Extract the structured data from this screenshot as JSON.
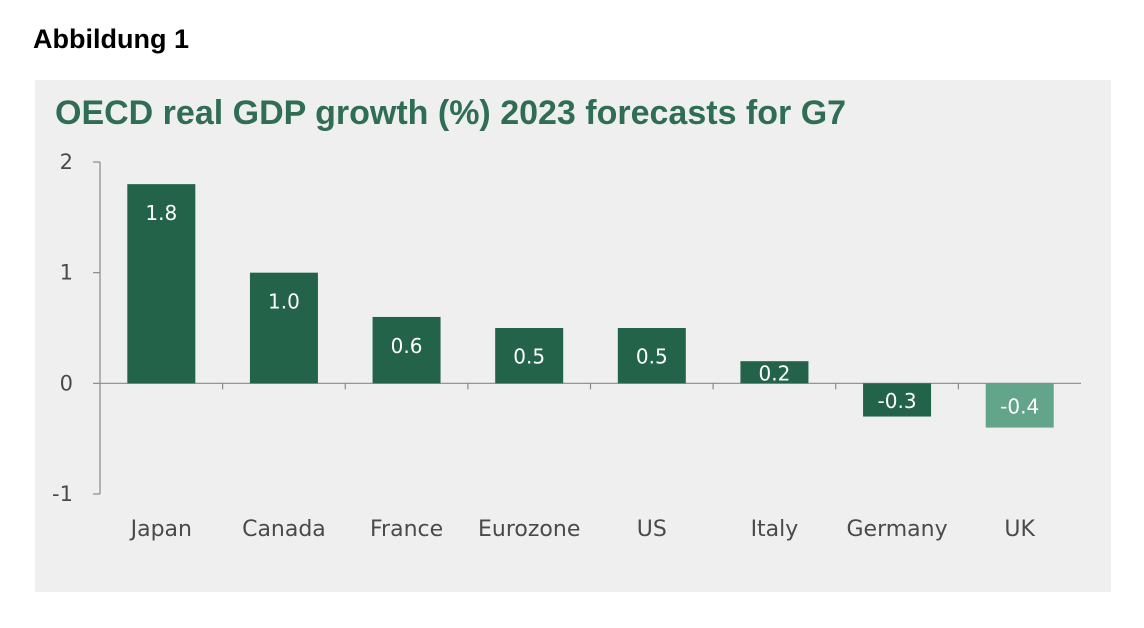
{
  "heading": "Abbildung 1",
  "colors": {
    "panel_bg": "#efefef",
    "title": "#2f6e54",
    "bar_positive": "#22634a",
    "bar_uk": "#63a58b",
    "axis": "#8a8a8a"
  },
  "chart_data": {
    "type": "bar",
    "title": "OECD real GDP growth (%) 2023 forecasts for G7",
    "xlabel": "",
    "ylabel": "",
    "categories": [
      "Japan",
      "Canada",
      "France",
      "Eurozone",
      "US",
      "Italy",
      "Germany",
      "UK"
    ],
    "values": [
      1.8,
      1.0,
      0.6,
      0.5,
      0.5,
      0.2,
      -0.3,
      -0.4
    ],
    "data_labels": [
      "1.8",
      "1.0",
      "0.6",
      "0.5",
      "0.5",
      "0.2",
      "-0.3",
      "-0.4"
    ],
    "ylim": [
      -1,
      2
    ],
    "yticks": [
      2,
      1,
      0,
      -1
    ],
    "ytick_labels": [
      "2",
      "1",
      "0",
      "-1"
    ],
    "grid": false,
    "legend": "none"
  }
}
